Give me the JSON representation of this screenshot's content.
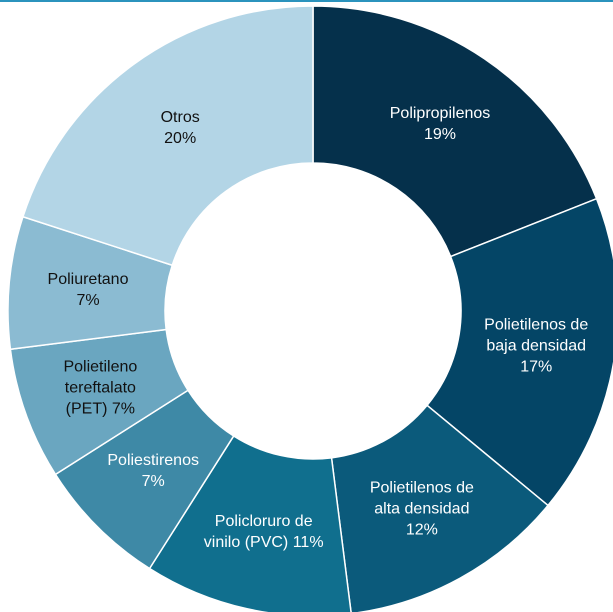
{
  "chart_data": {
    "type": "donut",
    "categories": [
      "Polipropilenos",
      "Polietilenos de baja densidad",
      "Polietilenos de alta densidad",
      "Policloruro de vinilo (PVC)",
      "Poliestirenos",
      "Polietileno tereftalato (PET)",
      "Poliuretano",
      "Otros"
    ],
    "values": [
      19,
      17,
      12,
      11,
      7,
      7,
      7,
      20
    ],
    "value_labels": [
      "19%",
      "17%",
      "12%",
      "11%",
      "7%",
      "7%",
      "7%",
      "20%"
    ],
    "colors": [
      "#05304b",
      "#044566",
      "#0b5a7b",
      "#106f8e",
      "#3e89a6",
      "#6aa6c0",
      "#8bbbd2",
      "#b3d5e6"
    ]
  }
}
